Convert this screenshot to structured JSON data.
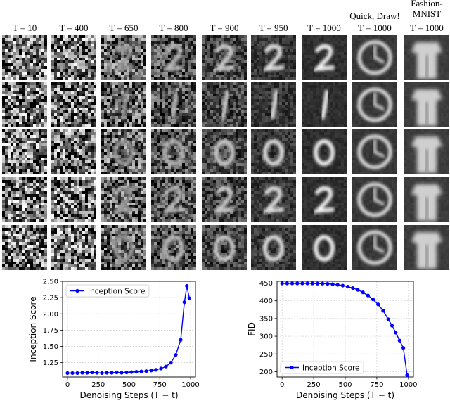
{
  "grid": {
    "columns": [
      {
        "line1": "",
        "line2": "T = 10",
        "content": "noise",
        "noise": 1.0
      },
      {
        "line1": "",
        "line2": "T = 400",
        "content": "noise",
        "noise": 0.95
      },
      {
        "line1": "",
        "line2": "T = 650",
        "content": "digit",
        "noise": 0.75
      },
      {
        "line1": "",
        "line2": "T = 800",
        "content": "digit",
        "noise": 0.55
      },
      {
        "line1": "",
        "line2": "T = 900",
        "content": "digit",
        "noise": 0.38
      },
      {
        "line1": "",
        "line2": "T = 950",
        "content": "digit",
        "noise": 0.22
      },
      {
        "line1": "",
        "line2": "T = 1000",
        "content": "digit",
        "noise": 0.08
      },
      {
        "line1": "Quick, Draw!",
        "line2": "T = 1000",
        "content": "clock",
        "noise": 0.05
      },
      {
        "line1": "Fashion-MNIST",
        "line2": "T = 1000",
        "content": "clothing",
        "noise": 0.04
      }
    ],
    "rows": 5,
    "row_shapes": [
      "two",
      "one",
      "zero",
      "two",
      "zero"
    ]
  },
  "chart_data": [
    {
      "type": "line",
      "title": "",
      "xlabel": "Denoising Steps (T − t)",
      "ylabel": "Inception Score",
      "xlim": [
        -40,
        1040
      ],
      "ylim": [
        1.03,
        2.5
      ],
      "xticks": [
        "0",
        "250",
        "500",
        "750",
        "1000"
      ],
      "yticks": [
        "1.25",
        "1.50",
        "1.75",
        "2.00",
        "2.25",
        "2.50"
      ],
      "grid": true,
      "legend": "top-left",
      "series": [
        {
          "name": "Inception Score",
          "color": "#0000ff",
          "x": [
            0,
            40,
            80,
            120,
            160,
            200,
            240,
            280,
            320,
            360,
            400,
            440,
            480,
            520,
            560,
            600,
            640,
            680,
            720,
            760,
            800,
            840,
            880,
            920,
            950,
            970,
            990
          ],
          "y": [
            1.09,
            1.09,
            1.09,
            1.095,
            1.095,
            1.1,
            1.095,
            1.09,
            1.095,
            1.095,
            1.1,
            1.095,
            1.1,
            1.105,
            1.11,
            1.115,
            1.12,
            1.13,
            1.14,
            1.16,
            1.19,
            1.25,
            1.37,
            1.6,
            2.18,
            2.43,
            2.24
          ]
        }
      ]
    },
    {
      "type": "line",
      "title": "",
      "xlabel": "Denoising Steps (T − t)",
      "ylabel": "FID",
      "xlim": [
        -40,
        1040
      ],
      "ylim": [
        185,
        455
      ],
      "xticks": [
        "0",
        "250",
        "500",
        "750",
        "1000"
      ],
      "yticks": [
        "200",
        "250",
        "300",
        "350",
        "400",
        "450"
      ],
      "grid": true,
      "legend": "bottom-left",
      "series": [
        {
          "name": "Inception Score",
          "color": "#0000ff",
          "x": [
            0,
            40,
            80,
            120,
            160,
            200,
            240,
            280,
            320,
            360,
            400,
            440,
            480,
            520,
            560,
            600,
            640,
            680,
            720,
            760,
            800,
            840,
            870,
            900,
            930,
            960,
            990
          ],
          "y": [
            449,
            449,
            449,
            449,
            449,
            449,
            449,
            448.5,
            448.5,
            448,
            447,
            445,
            443,
            440,
            436,
            431,
            424,
            415,
            404,
            390,
            372,
            348,
            330,
            310,
            288,
            267,
            190
          ]
        }
      ]
    }
  ]
}
